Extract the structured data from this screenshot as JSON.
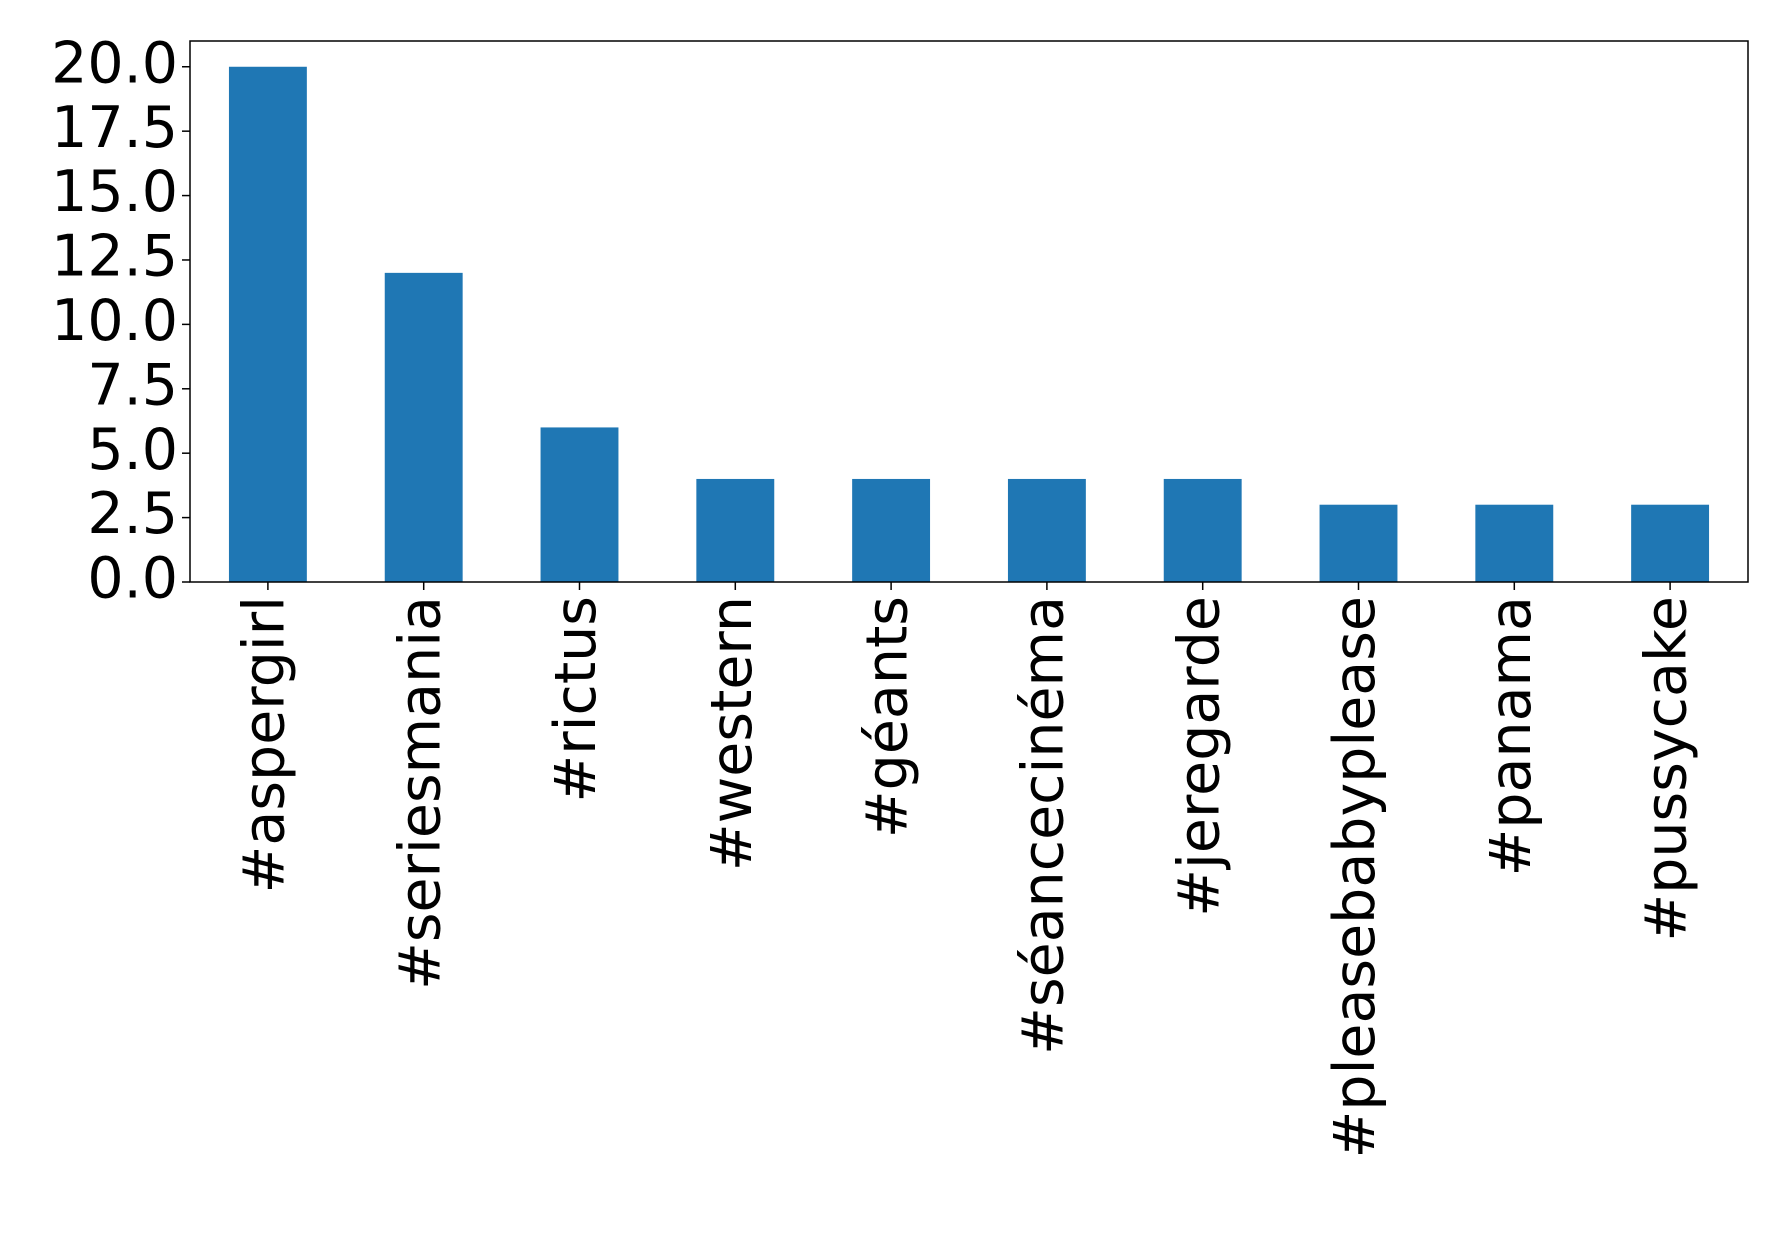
{
  "chart_data": {
    "type": "bar",
    "categories": [
      "#aspergirl",
      "#seriesmania",
      "#rictus",
      "#western",
      "#géants",
      "#séancecinéma",
      "#jeregarde",
      "#pleasebabyplease",
      "#panama",
      "#pussycake"
    ],
    "values": [
      20,
      12,
      6,
      4,
      4,
      4,
      4,
      3,
      3,
      3
    ],
    "color": "#1f77b4",
    "ylim": [
      0,
      21
    ],
    "yticks": [
      {
        "value": 0,
        "label": "0.0"
      },
      {
        "value": 2.5,
        "label": "2.5"
      },
      {
        "value": 5,
        "label": "5.0"
      },
      {
        "value": 7.5,
        "label": "7.5"
      },
      {
        "value": 10,
        "label": "10.0"
      },
      {
        "value": 12.5,
        "label": "12.5"
      },
      {
        "value": 15,
        "label": "15.0"
      },
      {
        "value": 17.5,
        "label": "17.5"
      },
      {
        "value": 20,
        "label": "20.0"
      }
    ],
    "grid": false
  }
}
